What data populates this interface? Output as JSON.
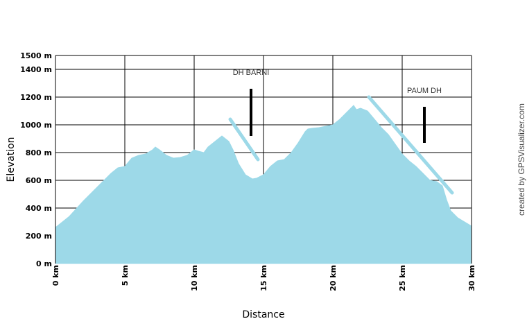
{
  "chart_data": {
    "type": "area",
    "title": "",
    "xlabel": "Distance",
    "ylabel": "Elevation",
    "credit": "created by GPSVisualizer.com",
    "xlim": [
      0,
      30
    ],
    "ylim": [
      0,
      1500
    ],
    "grid": true,
    "x_ticks": [
      {
        "value": 0,
        "label": "0 km"
      },
      {
        "value": 5,
        "label": "5 km"
      },
      {
        "value": 10,
        "label": "10 km"
      },
      {
        "value": 15,
        "label": "15 km"
      },
      {
        "value": 20,
        "label": "20 km"
      },
      {
        "value": 25,
        "label": "25 km"
      },
      {
        "value": 30,
        "label": "30 km"
      }
    ],
    "y_ticks": [
      {
        "value": 0,
        "label": "0 m"
      },
      {
        "value": 200,
        "label": "200 m"
      },
      {
        "value": 400,
        "label": "400 m"
      },
      {
        "value": 600,
        "label": "600 m"
      },
      {
        "value": 800,
        "label": "800 m"
      },
      {
        "value": 1000,
        "label": "1000 m"
      },
      {
        "value": 1200,
        "label": "1200 m"
      },
      {
        "value": 1400,
        "label": "1400 m"
      },
      {
        "value": 1500,
        "label": "1500 m"
      }
    ],
    "colors": {
      "fill": "#9dd9e8",
      "grid": "#000000",
      "marker": "#000000"
    },
    "series": [
      {
        "name": "",
        "x": [
          0,
          0.5,
          1,
          2,
          3,
          4,
          4.5,
          5,
          5.5,
          6,
          6.5,
          7,
          7.2,
          7.5,
          8,
          8.5,
          9,
          9.5,
          10,
          10.3,
          10.7,
          11,
          11.5,
          12,
          12.5,
          12.8,
          13.2,
          13.7,
          14.2,
          14.5,
          15,
          15.5,
          16,
          16.5,
          17,
          17.5,
          18,
          18.2,
          18.5,
          19,
          19.5,
          20,
          20.5,
          21,
          21.3,
          21.5,
          21.7,
          22,
          22.5,
          23,
          23.5,
          24,
          24.5,
          25,
          25.5,
          26,
          26.5,
          27,
          27.5,
          27.9,
          28.2,
          28.5,
          29,
          29.5,
          30
        ],
        "values": [
          260,
          300,
          340,
          450,
          550,
          650,
          690,
          700,
          760,
          780,
          790,
          820,
          840,
          820,
          780,
          760,
          765,
          780,
          820,
          810,
          800,
          840,
          880,
          920,
          880,
          820,
          720,
          640,
          610,
          615,
          640,
          700,
          740,
          750,
          800,
          870,
          950,
          970,
          975,
          980,
          990,
          1000,
          1040,
          1090,
          1120,
          1140,
          1110,
          1120,
          1100,
          1040,
          980,
          930,
          860,
          790,
          740,
          700,
          650,
          600,
          590,
          560,
          460,
          380,
          330,
          300,
          270
        ]
      }
    ],
    "annotations": [
      {
        "label": "DH BARNI",
        "x": 14.1,
        "y_top": 1260,
        "y_bottom": 920,
        "slash": {
          "x1": 12.6,
          "y1": 1040,
          "x2": 14.6,
          "y2": 750
        }
      },
      {
        "label": "PAUM DH",
        "x": 26.6,
        "y_top": 1130,
        "y_bottom": 870,
        "slash": {
          "x1": 22.6,
          "y1": 1200,
          "x2": 28.6,
          "y2": 510
        }
      }
    ]
  }
}
